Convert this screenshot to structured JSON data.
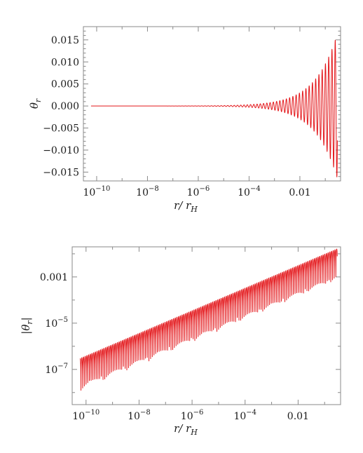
{
  "chart_data": [
    {
      "type": "line",
      "title": "",
      "xlabel": "r/ r_H",
      "ylabel": "θ_r",
      "x_scale": "log",
      "y_scale": "linear",
      "xlim": [
        3e-11,
        0.4
      ],
      "ylim": [
        -0.017,
        0.018
      ],
      "x_ticks": [
        {
          "value": 1e-10,
          "label": "10",
          "sup": "−10"
        },
        {
          "value": 1e-08,
          "label": "10",
          "sup": "−8"
        },
        {
          "value": 1e-06,
          "label": "10",
          "sup": "−6"
        },
        {
          "value": 0.0001,
          "label": "10",
          "sup": "−4"
        },
        {
          "value": 0.01,
          "label": "0.01",
          "sup": ""
        }
      ],
      "y_ticks": [
        {
          "value": 0.015,
          "label": "0.015"
        },
        {
          "value": 0.01,
          "label": "0.010"
        },
        {
          "value": 0.005,
          "label": "0.005"
        },
        {
          "value": 0.0,
          "label": "0.000"
        },
        {
          "value": -0.005,
          "label": "−0.005"
        },
        {
          "value": -0.01,
          "label": "−0.010"
        },
        {
          "value": -0.015,
          "label": "−0.015"
        }
      ],
      "series": [
        {
          "color": "#e3171b",
          "x_range": [
            6e-11,
            0.3
          ],
          "envelope": {
            "amplitude_at_end": 0.0165,
            "power_law_exponent": 0.5
          },
          "oscillations_per_decade": 7.8
        }
      ],
      "grid": false
    },
    {
      "type": "line",
      "title": "",
      "xlabel": "r/ r_H",
      "ylabel": "|θ_r|",
      "x_scale": "log",
      "y_scale": "log",
      "xlim": [
        3e-11,
        0.4
      ],
      "ylim": [
        3e-09,
        0.02
      ],
      "x_ticks": [
        {
          "value": 1e-10,
          "label": "10",
          "sup": "−10"
        },
        {
          "value": 1e-08,
          "label": "10",
          "sup": "−8"
        },
        {
          "value": 1e-06,
          "label": "10",
          "sup": "−6"
        },
        {
          "value": 0.0001,
          "label": "10",
          "sup": "−4"
        },
        {
          "value": 0.01,
          "label": "0.01",
          "sup": ""
        }
      ],
      "y_ticks": [
        {
          "value": 0.001,
          "label": "0.001",
          "sup": ""
        },
        {
          "value": 1e-05,
          "label": "10",
          "sup": "−5"
        },
        {
          "value": 1e-07,
          "label": "10",
          "sup": "−7"
        }
      ],
      "series": [
        {
          "color": "#e3171b",
          "x_range": [
            6e-11,
            0.3
          ],
          "upper_envelope": [
            {
              "x": 6e-11,
              "y": 3e-07
            },
            {
              "x": 0.3,
              "y": 0.0165
            }
          ],
          "oscillations_per_decade": 7.8
        }
      ],
      "grid": false
    }
  ]
}
